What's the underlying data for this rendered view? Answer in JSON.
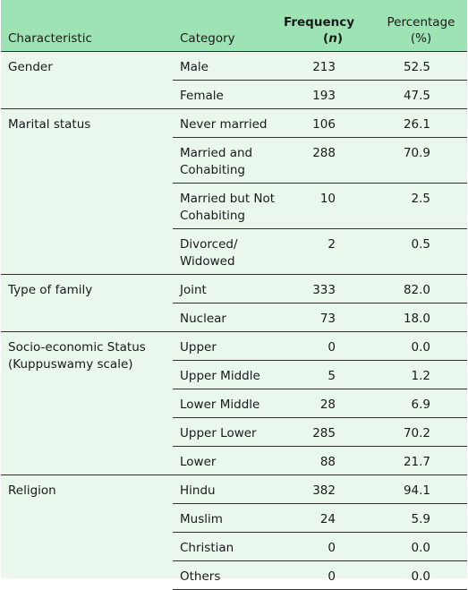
{
  "header": {
    "characteristic": "Characteristic",
    "category": "Category",
    "frequency_line1": "Frequency",
    "frequency_open": "(",
    "frequency_n": "n",
    "frequency_close": ")",
    "percentage_line1": "Percentage",
    "percentage_line2": "(%)"
  },
  "groups": [
    {
      "characteristic": "Gender",
      "rows": [
        {
          "category": "Male",
          "frequency": "213",
          "percentage": "52.5"
        },
        {
          "category": "Female",
          "frequency": "193",
          "percentage": "47.5"
        }
      ]
    },
    {
      "characteristic": "Marital status",
      "rows": [
        {
          "category": "Never married",
          "frequency": "106",
          "percentage": "26.1"
        },
        {
          "category": "Married and Cohabiting",
          "frequency": "288",
          "percentage": "70.9"
        },
        {
          "category": "Married but Not Cohabiting",
          "frequency": "10",
          "percentage": "2.5"
        },
        {
          "category": "Divorced/ Widowed",
          "frequency": "2",
          "percentage": "0.5"
        }
      ]
    },
    {
      "characteristic": "Type of family",
      "rows": [
        {
          "category": "Joint",
          "frequency": "333",
          "percentage": "82.0"
        },
        {
          "category": "Nuclear",
          "frequency": "73",
          "percentage": "18.0"
        }
      ]
    },
    {
      "characteristic": "Socio-economic Status (Kuppuswamy scale)",
      "rows": [
        {
          "category": "Upper",
          "frequency": "0",
          "percentage": "0.0"
        },
        {
          "category": "Upper Middle",
          "frequency": "5",
          "percentage": "1.2"
        },
        {
          "category": "Lower Middle",
          "frequency": "28",
          "percentage": "6.9"
        },
        {
          "category": "Upper Lower",
          "frequency": "285",
          "percentage": "70.2"
        },
        {
          "category": "Lower",
          "frequency": "88",
          "percentage": "21.7"
        }
      ]
    },
    {
      "characteristic": "Religion",
      "rows": [
        {
          "category": "Hindu",
          "frequency": "382",
          "percentage": "94.1"
        },
        {
          "category": "Muslim",
          "frequency": "24",
          "percentage": "5.9"
        },
        {
          "category": "Christian",
          "frequency": "0",
          "percentage": "0.0"
        },
        {
          "category": "Others",
          "frequency": "0",
          "percentage": "0.0"
        }
      ]
    }
  ]
}
